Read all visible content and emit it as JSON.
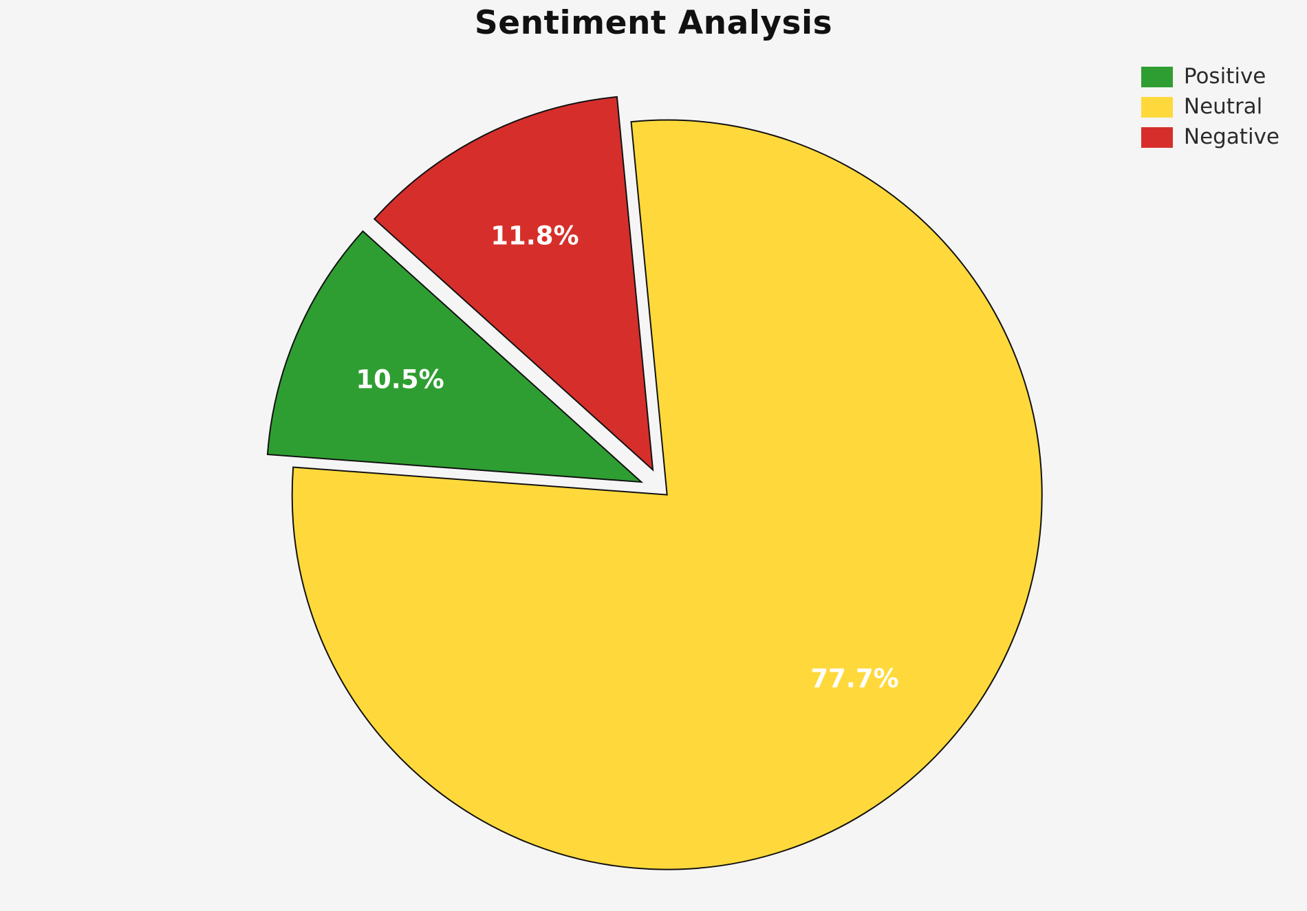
{
  "chart_data": {
    "type": "pie",
    "title": "Sentiment Analysis",
    "slices": [
      {
        "label": "Negative",
        "percent": 11.8,
        "display": "11.8%",
        "color": "#d62f2b",
        "explode": 0.065
      },
      {
        "label": "Positive",
        "percent": 10.5,
        "display": "10.5%",
        "color": "#2f9e32",
        "explode": 0.065
      },
      {
        "label": "Neutral",
        "percent": 77.7,
        "display": "77.7%",
        "color": "#ffd93b",
        "explode": 0.012
      }
    ],
    "start_angle_deg": 95.5,
    "direction": "counterclockwise",
    "legend_order": [
      "Positive",
      "Neutral",
      "Negative"
    ],
    "legend_position": "upper-right",
    "percent_label_color": "#ffffff",
    "edge_color": "#111111",
    "background_color": "#f5f5f5"
  }
}
